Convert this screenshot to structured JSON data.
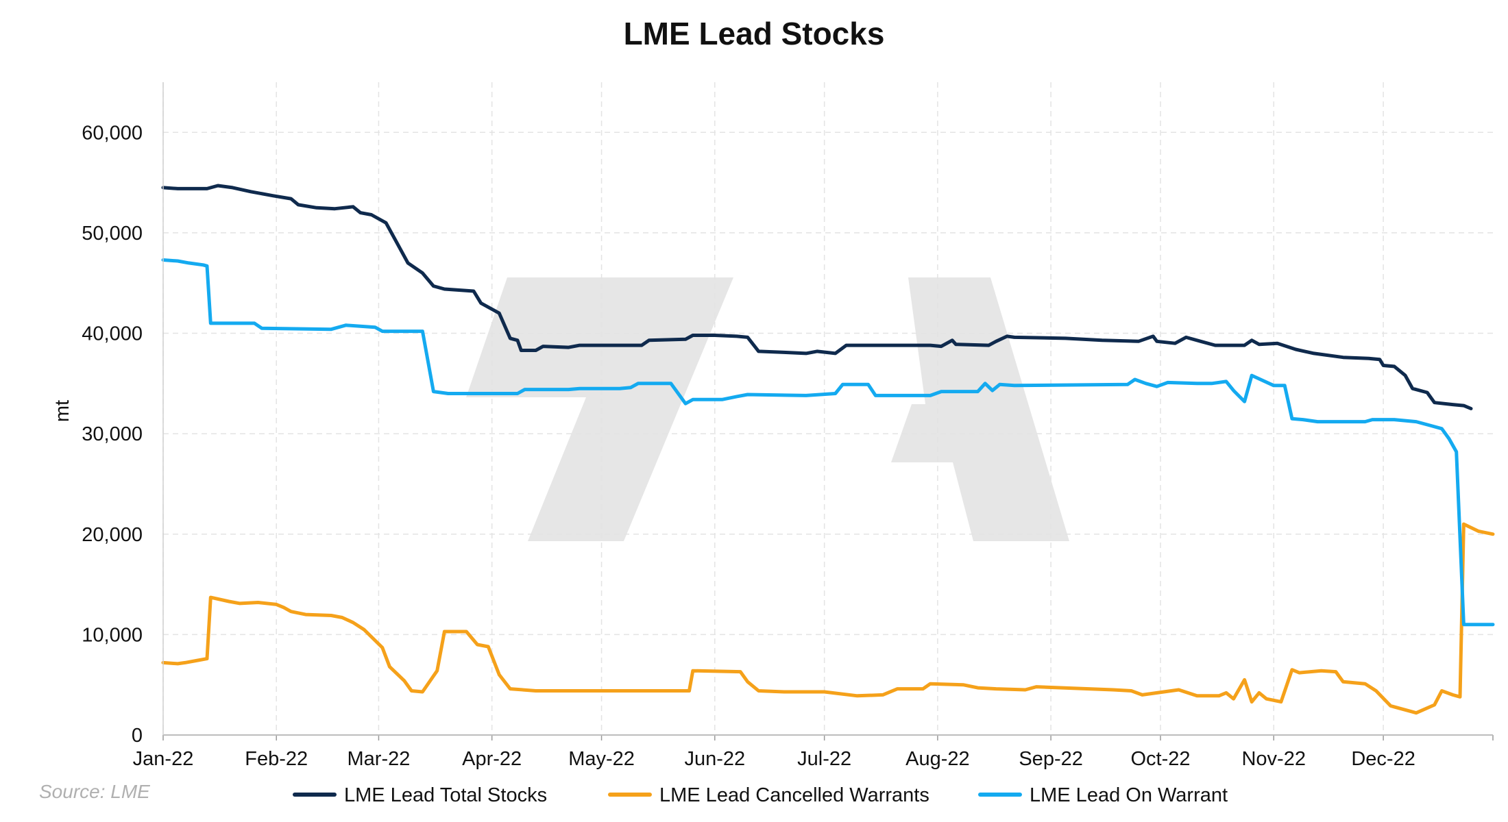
{
  "chart_data": {
    "type": "line",
    "title": "LME Lead Stocks",
    "xlabel": "",
    "ylabel": "mt",
    "source": "Source: LME",
    "ylim": [
      0,
      65000
    ],
    "yticks": [
      0,
      10000,
      20000,
      30000,
      40000,
      50000,
      60000
    ],
    "ytick_labels": [
      "0",
      "10,000",
      "20,000",
      "30,000",
      "40,000",
      "50,000",
      "60,000"
    ],
    "xlim": [
      "2022-01-01",
      "2022-12-31"
    ],
    "xticks": [
      "2022-01-01",
      "2022-02-01",
      "2022-03-01",
      "2022-04-01",
      "2022-05-01",
      "2022-06-01",
      "2022-07-01",
      "2022-08-01",
      "2022-09-01",
      "2022-10-01",
      "2022-11-01",
      "2022-12-01"
    ],
    "xtick_labels": [
      "Jan-22",
      "Feb-22",
      "Mar-22",
      "Apr-22",
      "May-22",
      "Jun-22",
      "Jul-22",
      "Aug-22",
      "Sep-22",
      "Oct-22",
      "Nov-22",
      "Dec-22"
    ],
    "grid": true,
    "legend_position": "bottom",
    "series": [
      {
        "name": "LME Lead Total Stocks",
        "color": "#0f2a4d",
        "points": [
          [
            "2022-01-01",
            54500
          ],
          [
            "2022-01-05",
            54400
          ],
          [
            "2022-01-13",
            54400
          ],
          [
            "2022-01-16",
            54700
          ],
          [
            "2022-01-20",
            54500
          ],
          [
            "2022-01-25",
            54100
          ],
          [
            "2022-01-31",
            53700
          ],
          [
            "2022-02-05",
            53400
          ],
          [
            "2022-02-07",
            52800
          ],
          [
            "2022-02-12",
            52500
          ],
          [
            "2022-02-17",
            52400
          ],
          [
            "2022-02-22",
            52600
          ],
          [
            "2022-02-24",
            52000
          ],
          [
            "2022-02-27",
            51800
          ],
          [
            "2022-03-03",
            51000
          ],
          [
            "2022-03-06",
            49000
          ],
          [
            "2022-03-09",
            47000
          ],
          [
            "2022-03-13",
            46000
          ],
          [
            "2022-03-16",
            44700
          ],
          [
            "2022-03-19",
            44400
          ],
          [
            "2022-03-23",
            44300
          ],
          [
            "2022-03-27",
            44200
          ],
          [
            "2022-03-29",
            43000
          ],
          [
            "2022-04-03",
            42000
          ],
          [
            "2022-04-06",
            39500
          ],
          [
            "2022-04-08",
            39300
          ],
          [
            "2022-04-09",
            38300
          ],
          [
            "2022-04-13",
            38300
          ],
          [
            "2022-04-15",
            38700
          ],
          [
            "2022-04-22",
            38600
          ],
          [
            "2022-04-25",
            38800
          ],
          [
            "2022-05-12",
            38800
          ],
          [
            "2022-05-14",
            39300
          ],
          [
            "2022-05-24",
            39400
          ],
          [
            "2022-05-26",
            39800
          ],
          [
            "2022-06-01",
            39800
          ],
          [
            "2022-06-07",
            39700
          ],
          [
            "2022-06-10",
            39600
          ],
          [
            "2022-06-13",
            38200
          ],
          [
            "2022-06-20",
            38100
          ],
          [
            "2022-06-26",
            38000
          ],
          [
            "2022-06-29",
            38200
          ],
          [
            "2022-07-04",
            38000
          ],
          [
            "2022-07-07",
            38800
          ],
          [
            "2022-07-30",
            38800
          ],
          [
            "2022-08-02",
            38700
          ],
          [
            "2022-08-05",
            39300
          ],
          [
            "2022-08-06",
            38900
          ],
          [
            "2022-08-15",
            38800
          ],
          [
            "2022-08-17",
            39200
          ],
          [
            "2022-08-20",
            39700
          ],
          [
            "2022-08-22",
            39600
          ],
          [
            "2022-09-05",
            39500
          ],
          [
            "2022-09-15",
            39300
          ],
          [
            "2022-09-25",
            39200
          ],
          [
            "2022-09-29",
            39700
          ],
          [
            "2022-09-30",
            39200
          ],
          [
            "2022-10-05",
            39000
          ],
          [
            "2022-10-08",
            39600
          ],
          [
            "2022-10-12",
            39200
          ],
          [
            "2022-10-16",
            38800
          ],
          [
            "2022-10-24",
            38800
          ],
          [
            "2022-10-26",
            39300
          ],
          [
            "2022-10-28",
            38900
          ],
          [
            "2022-11-02",
            39000
          ],
          [
            "2022-11-07",
            38400
          ],
          [
            "2022-11-12",
            38000
          ],
          [
            "2022-11-20",
            37600
          ],
          [
            "2022-11-27",
            37500
          ],
          [
            "2022-11-30",
            37400
          ],
          [
            "2022-12-01",
            36800
          ],
          [
            "2022-12-04",
            36700
          ],
          [
            "2022-12-07",
            35800
          ],
          [
            "2022-12-09",
            34500
          ],
          [
            "2022-12-13",
            34100
          ],
          [
            "2022-12-15",
            33100
          ],
          [
            "2022-12-20",
            32900
          ],
          [
            "2022-12-23",
            32800
          ],
          [
            "2022-12-25",
            32500
          ]
        ]
      },
      {
        "name": "LME Lead Cancelled Warrants",
        "color": "#f5a11a",
        "points": [
          [
            "2022-01-01",
            7200
          ],
          [
            "2022-01-05",
            7100
          ],
          [
            "2022-01-07",
            7200
          ],
          [
            "2022-01-10",
            7400
          ],
          [
            "2022-01-13",
            7600
          ],
          [
            "2022-01-14",
            13700
          ],
          [
            "2022-01-19",
            13300
          ],
          [
            "2022-01-22",
            13100
          ],
          [
            "2022-01-27",
            13200
          ],
          [
            "2022-02-01",
            13000
          ],
          [
            "2022-02-03",
            12700
          ],
          [
            "2022-02-05",
            12300
          ],
          [
            "2022-02-09",
            12000
          ],
          [
            "2022-02-16",
            11900
          ],
          [
            "2022-02-19",
            11700
          ],
          [
            "2022-02-22",
            11200
          ],
          [
            "2022-02-25",
            10500
          ],
          [
            "2022-03-02",
            8700
          ],
          [
            "2022-03-04",
            6800
          ],
          [
            "2022-03-08",
            5400
          ],
          [
            "2022-03-10",
            4400
          ],
          [
            "2022-03-13",
            4300
          ],
          [
            "2022-03-17",
            6400
          ],
          [
            "2022-03-19",
            10300
          ],
          [
            "2022-03-25",
            10300
          ],
          [
            "2022-03-28",
            9000
          ],
          [
            "2022-03-31",
            8800
          ],
          [
            "2022-04-03",
            6000
          ],
          [
            "2022-04-06",
            4600
          ],
          [
            "2022-04-13",
            4400
          ],
          [
            "2022-05-25",
            4400
          ],
          [
            "2022-05-26",
            6400
          ],
          [
            "2022-06-08",
            6300
          ],
          [
            "2022-06-10",
            5300
          ],
          [
            "2022-06-13",
            4400
          ],
          [
            "2022-06-20",
            4300
          ],
          [
            "2022-07-01",
            4300
          ],
          [
            "2022-07-10",
            3900
          ],
          [
            "2022-07-17",
            4000
          ],
          [
            "2022-07-21",
            4600
          ],
          [
            "2022-07-28",
            4600
          ],
          [
            "2022-07-30",
            5100
          ],
          [
            "2022-08-08",
            5000
          ],
          [
            "2022-08-12",
            4700
          ],
          [
            "2022-08-17",
            4600
          ],
          [
            "2022-08-25",
            4500
          ],
          [
            "2022-08-28",
            4800
          ],
          [
            "2022-09-18",
            4500
          ],
          [
            "2022-09-23",
            4400
          ],
          [
            "2022-09-26",
            4000
          ],
          [
            "2022-10-06",
            4500
          ],
          [
            "2022-10-11",
            3900
          ],
          [
            "2022-10-17",
            3900
          ],
          [
            "2022-10-19",
            4200
          ],
          [
            "2022-10-21",
            3600
          ],
          [
            "2022-10-24",
            5500
          ],
          [
            "2022-10-26",
            3300
          ],
          [
            "2022-10-28",
            4200
          ],
          [
            "2022-10-30",
            3600
          ],
          [
            "2022-11-03",
            3300
          ],
          [
            "2022-11-06",
            6500
          ],
          [
            "2022-11-08",
            6200
          ],
          [
            "2022-11-14",
            6400
          ],
          [
            "2022-11-18",
            6300
          ],
          [
            "2022-11-20",
            5300
          ],
          [
            "2022-11-26",
            5100
          ],
          [
            "2022-11-29",
            4400
          ],
          [
            "2022-12-03",
            2900
          ],
          [
            "2022-12-07",
            2500
          ],
          [
            "2022-12-10",
            2200
          ],
          [
            "2022-12-15",
            3000
          ],
          [
            "2022-12-17",
            4400
          ],
          [
            "2022-12-20",
            4000
          ],
          [
            "2022-12-22",
            3800
          ],
          [
            "2022-12-23",
            21000
          ],
          [
            "2022-12-27",
            20300
          ],
          [
            "2022-12-31",
            20000
          ]
        ]
      },
      {
        "name": "LME Lead On Warrant",
        "color": "#14aaf0",
        "points": [
          [
            "2022-01-01",
            47300
          ],
          [
            "2022-01-05",
            47200
          ],
          [
            "2022-01-08",
            47000
          ],
          [
            "2022-01-12",
            46800
          ],
          [
            "2022-01-13",
            46700
          ],
          [
            "2022-01-14",
            41000
          ],
          [
            "2022-01-26",
            41000
          ],
          [
            "2022-01-28",
            40500
          ],
          [
            "2022-02-16",
            40400
          ],
          [
            "2022-02-20",
            40800
          ],
          [
            "2022-02-28",
            40600
          ],
          [
            "2022-03-02",
            40200
          ],
          [
            "2022-03-13",
            40200
          ],
          [
            "2022-03-16",
            34200
          ],
          [
            "2022-03-20",
            34000
          ],
          [
            "2022-04-08",
            34000
          ],
          [
            "2022-04-10",
            34400
          ],
          [
            "2022-04-22",
            34400
          ],
          [
            "2022-04-25",
            34500
          ],
          [
            "2022-05-06",
            34500
          ],
          [
            "2022-05-09",
            34600
          ],
          [
            "2022-05-11",
            35000
          ],
          [
            "2022-05-20",
            35000
          ],
          [
            "2022-05-24",
            33000
          ],
          [
            "2022-05-26",
            33400
          ],
          [
            "2022-06-03",
            33400
          ],
          [
            "2022-06-07",
            33700
          ],
          [
            "2022-06-10",
            33900
          ],
          [
            "2022-06-26",
            33800
          ],
          [
            "2022-07-04",
            34000
          ],
          [
            "2022-07-06",
            34900
          ],
          [
            "2022-07-13",
            34900
          ],
          [
            "2022-07-15",
            33800
          ],
          [
            "2022-07-30",
            33800
          ],
          [
            "2022-08-02",
            34200
          ],
          [
            "2022-08-09",
            34200
          ],
          [
            "2022-08-12",
            34200
          ],
          [
            "2022-08-14",
            35000
          ],
          [
            "2022-08-16",
            34300
          ],
          [
            "2022-08-18",
            34900
          ],
          [
            "2022-08-22",
            34800
          ],
          [
            "2022-09-22",
            34900
          ],
          [
            "2022-09-24",
            35400
          ],
          [
            "2022-09-27",
            35000
          ],
          [
            "2022-09-30",
            34700
          ],
          [
            "2022-10-03",
            35100
          ],
          [
            "2022-10-11",
            35000
          ],
          [
            "2022-10-15",
            35000
          ],
          [
            "2022-10-19",
            35200
          ],
          [
            "2022-10-21",
            34300
          ],
          [
            "2022-10-24",
            33200
          ],
          [
            "2022-10-26",
            35800
          ],
          [
            "2022-11-01",
            34800
          ],
          [
            "2022-11-04",
            34800
          ],
          [
            "2022-11-06",
            31500
          ],
          [
            "2022-11-09",
            31400
          ],
          [
            "2022-11-13",
            31200
          ],
          [
            "2022-11-26",
            31200
          ],
          [
            "2022-11-28",
            31400
          ],
          [
            "2022-12-04",
            31400
          ],
          [
            "2022-12-10",
            31200
          ],
          [
            "2022-12-14",
            30800
          ],
          [
            "2022-12-17",
            30500
          ],
          [
            "2022-12-19",
            29500
          ],
          [
            "2022-12-21",
            28200
          ],
          [
            "2022-12-23",
            11000
          ],
          [
            "2022-12-31",
            11000
          ]
        ]
      }
    ]
  },
  "legend": {
    "items": [
      "LME Lead Total Stocks",
      "LME Lead Cancelled Warrants",
      "LME Lead On Warrant"
    ]
  },
  "watermark": {
    "text": "7A"
  }
}
